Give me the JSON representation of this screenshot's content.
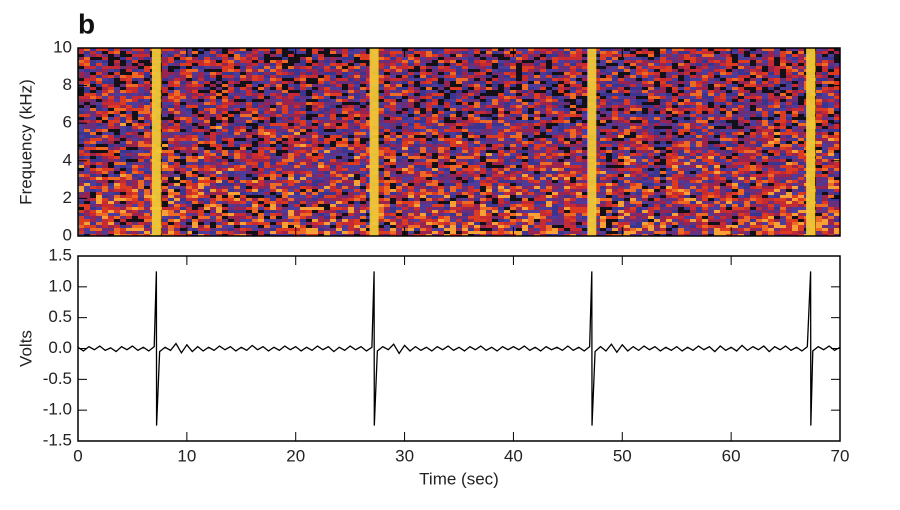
{
  "panel_label": "b",
  "chart_data": [
    {
      "type": "spectrogram",
      "ylabel": "Frequency (kHz)",
      "xlim": [
        0,
        70
      ],
      "xticks": [
        0,
        10,
        20,
        30,
        40,
        50,
        60,
        70
      ],
      "ylim": [
        0,
        10
      ],
      "yticks": [
        0,
        2,
        4,
        6,
        8,
        10
      ],
      "pulses": [
        7.2,
        27.2,
        47.2,
        67.3
      ],
      "pulse_color": "#f0c838"
    },
    {
      "type": "line",
      "xlabel": "Time (sec)",
      "ylabel": "Volts",
      "xlim": [
        0,
        70
      ],
      "xticks": [
        0,
        10,
        20,
        30,
        40,
        50,
        60,
        70
      ],
      "ylim": [
        -1.5,
        1.5
      ],
      "yticks": [
        -1.5,
        {
          "value": -1,
          "label": "-1.0"
        },
        -0.5,
        {
          "value": 0,
          "label": "0.0"
        },
        0.5,
        {
          "value": 1,
          "label": "1.0"
        },
        1.5
      ],
      "x": [
        0,
        0.5,
        1,
        1.5,
        2,
        2.5,
        3,
        3.5,
        4,
        4.5,
        5,
        5.5,
        6,
        6.5,
        7,
        7.2,
        7.22,
        7.5,
        8,
        8.5,
        9,
        9.5,
        10,
        10.5,
        11,
        11.5,
        12,
        12.5,
        13,
        13.5,
        14,
        14.5,
        15,
        15.5,
        16,
        16.5,
        17,
        17.5,
        18,
        18.5,
        19,
        19.5,
        20,
        20.5,
        21,
        21.5,
        22,
        22.5,
        23,
        23.5,
        24,
        24.5,
        25,
        25.5,
        26,
        26.5,
        27,
        27.2,
        27.22,
        27.5,
        28,
        28.5,
        29,
        29.5,
        30,
        30.5,
        31,
        31.5,
        32,
        32.5,
        33,
        33.5,
        34,
        34.5,
        35,
        35.5,
        36,
        36.5,
        37,
        37.5,
        38,
        38.5,
        39,
        39.5,
        40,
        40.5,
        41,
        41.5,
        42,
        42.5,
        43,
        43.5,
        44,
        44.5,
        45,
        45.5,
        46,
        46.5,
        47,
        47.2,
        47.22,
        47.5,
        48,
        48.5,
        49,
        49.5,
        50,
        50.5,
        51,
        51.5,
        52,
        52.5,
        53,
        53.5,
        54,
        54.5,
        55,
        55.5,
        56,
        56.5,
        57,
        57.5,
        58,
        58.5,
        59,
        59.5,
        60,
        60.5,
        61,
        61.5,
        62,
        62.5,
        63,
        63.5,
        64,
        64.5,
        65,
        65.5,
        66,
        66.5,
        67,
        67.3,
        67.32,
        67.5,
        68,
        68.5,
        69,
        69.5,
        70
      ],
      "series": [
        {
          "color": "#000000",
          "values": [
            0.02,
            -0.04,
            0.03,
            -0.02,
            0.04,
            -0.03,
            0.01,
            -0.05,
            0.03,
            -0.02,
            0.04,
            -0.03,
            0.02,
            -0.04,
            0.03,
            1.25,
            -1.25,
            -0.05,
            0.02,
            -0.03,
            0.08,
            -0.07,
            0.06,
            -0.05,
            0.03,
            -0.04,
            0.02,
            -0.03,
            0.04,
            -0.02,
            0.03,
            -0.04,
            0.02,
            -0.03,
            0.05,
            -0.02,
            0.03,
            -0.04,
            0.02,
            -0.03,
            0.04,
            -0.02,
            0.03,
            -0.04,
            0.02,
            -0.03,
            0.04,
            -0.02,
            0.03,
            -0.05,
            0.02,
            -0.03,
            0.04,
            -0.02,
            0.03,
            -0.04,
            0.02,
            1.25,
            -1.25,
            -0.04,
            0.03,
            -0.02,
            0.07,
            -0.08,
            0.05,
            -0.04,
            0.03,
            -0.03,
            0.02,
            -0.04,
            0.03,
            -0.02,
            0.04,
            -0.03,
            0.02,
            -0.04,
            0.03,
            -0.02,
            0.04,
            -0.03,
            0.02,
            -0.04,
            0.03,
            -0.02,
            0.03,
            -0.02,
            0.04,
            -0.03,
            0.02,
            -0.04,
            0.03,
            -0.02,
            0.02,
            -0.03,
            0.04,
            -0.03,
            0.02,
            -0.04,
            0.03,
            1.25,
            -1.25,
            -0.05,
            0.03,
            -0.04,
            0.07,
            -0.06,
            0.06,
            -0.04,
            0.03,
            -0.03,
            0.04,
            -0.02,
            0.03,
            -0.04,
            0.02,
            -0.03,
            0.03,
            -0.04,
            0.02,
            -0.03,
            0.04,
            -0.02,
            0.03,
            -0.05,
            0.04,
            -0.03,
            0.02,
            -0.04,
            0.05,
            -0.03,
            0.03,
            -0.02,
            0.04,
            -0.05,
            0.03,
            -0.02,
            0.04,
            -0.03,
            0.02,
            -0.04,
            0.03,
            1.25,
            -1.25,
            -0.04,
            0.03,
            -0.02,
            0.04,
            -0.03,
            0.02
          ]
        }
      ]
    }
  ]
}
